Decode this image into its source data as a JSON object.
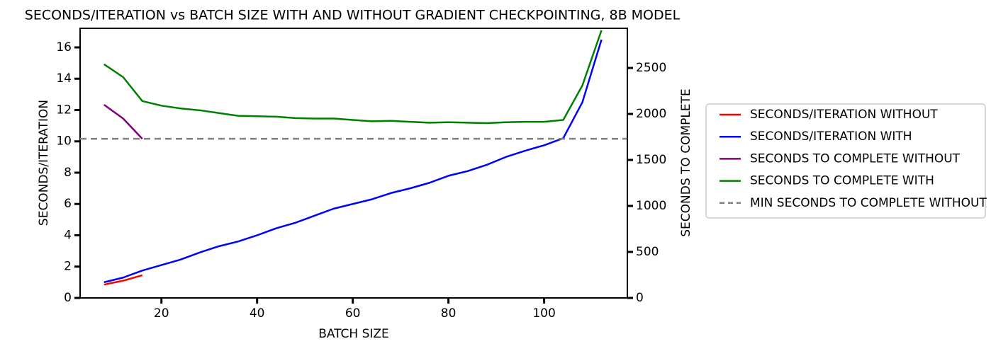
{
  "chart_data": {
    "type": "line",
    "title": "SECONDS/ITERATION vs BATCH SIZE WITH AND WITHOUT GRADIENT CHECKPOINTING, 8B MODEL",
    "x_label": "BATCH SIZE",
    "y_label": "SECONDS/ITERATION",
    "y2_label": "SECONDS TO COMPLETE",
    "xlim": [
      3,
      117.4
    ],
    "ylim": [
      0,
      17.22
    ],
    "y2lim": [
      0,
      2931
    ],
    "xticks": [
      20,
      40,
      60,
      80,
      100
    ],
    "yticks": [
      0,
      2,
      4,
      6,
      8,
      10,
      12,
      14,
      16
    ],
    "y2ticks": [
      0,
      500,
      1000,
      1500,
      2000,
      2500
    ],
    "legend": "right",
    "series": [
      {
        "name": "SECONDS/ITERATION WITHOUT",
        "color": "#ff0000",
        "axis": "y",
        "x": [
          8,
          12,
          16
        ],
        "values": [
          0.85,
          1.1,
          1.45
        ]
      },
      {
        "name": "SECONDS/ITERATION WITH",
        "color": "#0000ff",
        "axis": "y",
        "x": [
          8,
          12,
          16,
          20,
          24,
          28,
          32,
          36,
          40,
          44,
          48,
          52,
          56,
          60,
          64,
          68,
          72,
          76,
          80,
          84,
          88,
          92,
          96,
          100,
          104,
          108,
          112
        ],
        "values": [
          1.0,
          1.3,
          1.75,
          2.1,
          2.45,
          2.9,
          3.3,
          3.6,
          4.0,
          4.45,
          4.8,
          5.25,
          5.7,
          6.0,
          6.3,
          6.7,
          7.0,
          7.35,
          7.8,
          8.1,
          8.5,
          9.0,
          9.4,
          9.75,
          10.2,
          12.5,
          16.5
        ]
      },
      {
        "name": "SECONDS TO COMPLETE WITHOUT",
        "color": "#800080",
        "axis": "y2",
        "x": [
          8,
          12,
          16
        ],
        "values": [
          2100,
          1950,
          1730
        ]
      },
      {
        "name": "SECONDS TO COMPLETE WITH",
        "color": "#008000",
        "axis": "y2",
        "x": [
          8,
          12,
          16,
          20,
          24,
          28,
          32,
          36,
          40,
          44,
          48,
          52,
          56,
          60,
          64,
          68,
          72,
          76,
          80,
          84,
          88,
          92,
          96,
          100,
          104,
          108,
          112
        ],
        "values": [
          2540,
          2400,
          2140,
          2090,
          2060,
          2040,
          2010,
          1980,
          1975,
          1970,
          1955,
          1950,
          1950,
          1935,
          1920,
          1925,
          1915,
          1905,
          1910,
          1905,
          1900,
          1910,
          1915,
          1915,
          1935,
          2310,
          2910
        ]
      },
      {
        "name": "MIN SECONDS TO COMPLETE WITHOUT",
        "color": "#808080",
        "axis": "y2",
        "dashed": true,
        "x": [
          3,
          117.4
        ],
        "values": [
          1730,
          1730
        ]
      }
    ]
  }
}
